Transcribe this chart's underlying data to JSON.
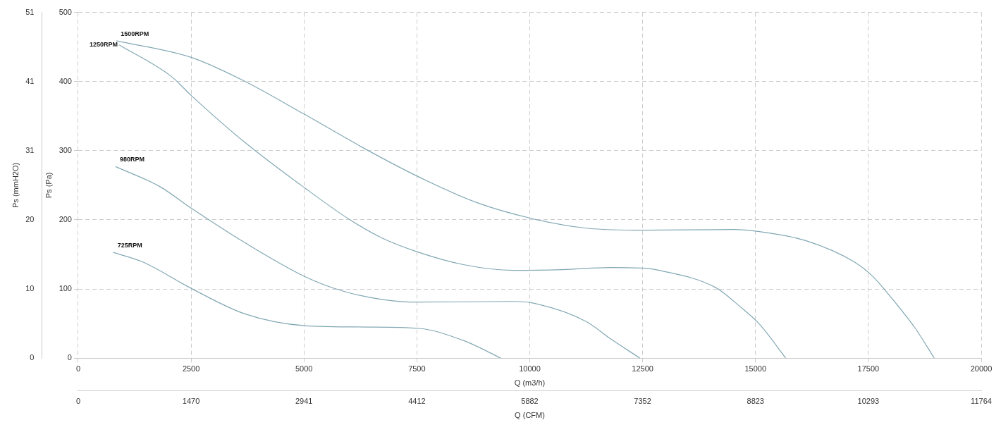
{
  "chart_data": {
    "type": "line",
    "xlabel": "Q (m3/h)",
    "ylabel": "Ps (Pa)",
    "y2label": "Ps (mmH2O)",
    "x2label": "Q (CFM)",
    "xlim": [
      0,
      20000
    ],
    "xticks": [
      0,
      2500,
      5000,
      7500,
      10000,
      12500,
      15000,
      17500,
      20000
    ],
    "ylim": [
      0,
      500
    ],
    "yticks": [
      0,
      100,
      200,
      300,
      400,
      500
    ],
    "y2lim": [
      0,
      51
    ],
    "y2ticks": [
      0,
      {
        "value": 10.2,
        "label": "10"
      },
      {
        "value": 20.4,
        "label": "20"
      },
      {
        "value": 30.6,
        "label": "31"
      },
      {
        "value": 40.8,
        "label": "41"
      },
      51
    ],
    "x2lim": [
      0,
      11764
    ],
    "x2ticks": [
      0,
      1470,
      2941,
      4412,
      5882,
      7352,
      8823,
      10293,
      11764
    ],
    "grid": true,
    "marker": "none",
    "line_style": "solid",
    "legend": false,
    "series": [
      {
        "name": "1500RPM",
        "color": "#82a8b4",
        "x": [
          847,
          2500,
          3700,
          5000,
          6400,
          7545,
          8825,
          10040,
          11250,
          12550,
          14490,
          15090,
          16110,
          17190,
          17600,
          18000,
          18540,
          18960
        ],
        "values": [
          459,
          435,
          400,
          353,
          301,
          262,
          225,
          202,
          188,
          185,
          186,
          183,
          170,
          139,
          118,
          88,
          43,
          0
        ]
      },
      {
        "name": "1250RPM",
        "color": "#82a8b4",
        "x": [
          907,
          2070,
          2500,
          3690,
          5020,
          6020,
          6720,
          7545,
          8550,
          9630,
          10720,
          11790,
          12550,
          12870,
          14120,
          14650,
          15090,
          15670
        ],
        "values": [
          453,
          407,
          380,
          312,
          246,
          200,
          174,
          153,
          135,
          127,
          128,
          131,
          130,
          127,
          102,
          75,
          49,
          0
        ]
      },
      {
        "name": "980RPM",
        "color": "#82a8b4",
        "x": [
          826,
          1810,
          2500,
          3690,
          5020,
          5860,
          6720,
          7545,
          9630,
          10040,
          11250,
          11790,
          12440
        ],
        "values": [
          277,
          248,
          217,
          167,
          118,
          97,
          85,
          81,
          82,
          80,
          53,
          28,
          0
        ]
      },
      {
        "name": "725RPM",
        "color": "#82a8b4",
        "x": [
          775,
          1430,
          2500,
          3690,
          5020,
          6400,
          7545,
          8550,
          9360
        ],
        "values": [
          153,
          139,
          101,
          64,
          47,
          45,
          43,
          25,
          0
        ]
      }
    ]
  }
}
